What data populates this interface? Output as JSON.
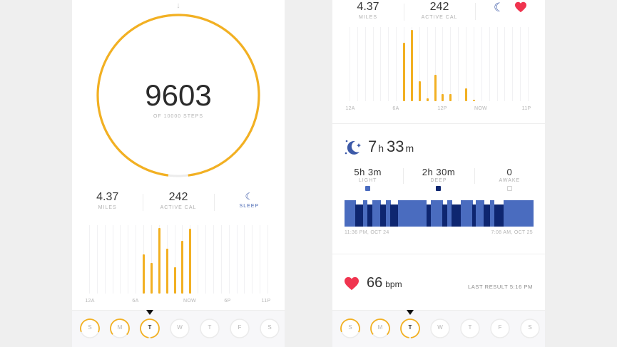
{
  "colors": {
    "accent_orange": "#f2b022",
    "sleep_light": "#4a6cbf",
    "sleep_deep": "#0e2670",
    "heart": "#f0344f",
    "moon": "#3d5aa8",
    "ring_track": "#ececec"
  },
  "left": {
    "steps": {
      "value": "9603",
      "subtitle": "OF 10000 STEPS",
      "goal": 10000,
      "progress_pct": 96.03
    },
    "stats": [
      {
        "value": "4.37",
        "label": "MILES"
      },
      {
        "value": "242",
        "label": "ACTIVE CAL"
      },
      {
        "icon": "moon-icon",
        "label": "SLEEP"
      }
    ],
    "chart": {
      "x_labels": [
        "12A",
        "6A",
        "NOW",
        "6P",
        "11P"
      ],
      "bars": [
        0,
        0,
        0,
        0,
        0,
        0,
        0,
        0.6,
        0.47,
        1.0,
        0.68,
        0.4,
        0.8,
        0.99,
        0,
        0,
        0,
        0,
        0,
        0,
        0,
        0,
        0,
        0
      ]
    },
    "days": [
      {
        "label": "S",
        "progress": 0.62,
        "active": false
      },
      {
        "label": "M",
        "progress": 0.72,
        "active": false
      },
      {
        "label": "T",
        "progress": 0.96,
        "active": true
      },
      {
        "label": "W",
        "progress": 0,
        "active": false
      },
      {
        "label": "T",
        "progress": 0,
        "active": false
      },
      {
        "label": "F",
        "progress": 0,
        "active": false
      },
      {
        "label": "S",
        "progress": 0,
        "active": false
      }
    ]
  },
  "right": {
    "stats": [
      {
        "value": "4.37",
        "label": "MILES"
      },
      {
        "value": "242",
        "label": "ACTIVE CAL"
      }
    ],
    "icons": [
      "moon-icon",
      "heart-icon"
    ],
    "chart": {
      "x_labels": [
        "12A",
        "6A",
        "12P",
        "NOW",
        "11P"
      ],
      "bars": [
        0,
        0,
        0,
        0,
        0,
        0,
        0,
        0.82,
        1.0,
        0.28,
        0.04,
        0.37,
        0.1,
        0.1,
        0,
        0.18,
        0.02,
        0,
        0,
        0,
        0,
        0,
        0,
        0
      ]
    },
    "sleep": {
      "total_hours": "7",
      "hours_unit": "h",
      "total_minutes": "33",
      "minutes_unit": "m",
      "stats": [
        {
          "value": "5h 3m",
          "label": "LIGHT",
          "swatch": "#4a6cbf"
        },
        {
          "value": "2h 30m",
          "label": "DEEP",
          "swatch": "#0e2670"
        },
        {
          "value": "0",
          "label": "AWAKE",
          "swatch": "#ffffff"
        }
      ],
      "start_time": "11:36 PM, OCT 24",
      "end_time": "7:08 AM, OCT 25",
      "segments": [
        {
          "t": "L",
          "w": 15
        },
        {
          "t": "D",
          "w": 10
        },
        {
          "t": "L",
          "w": 6
        },
        {
          "t": "D",
          "w": 7
        },
        {
          "t": "L",
          "w": 11
        },
        {
          "t": "D",
          "w": 8
        },
        {
          "t": "L",
          "w": 6
        },
        {
          "t": "D",
          "w": 10
        },
        {
          "t": "L",
          "w": 39
        },
        {
          "t": "D",
          "w": 6
        },
        {
          "t": "L",
          "w": 16
        },
        {
          "t": "D",
          "w": 7
        },
        {
          "t": "L",
          "w": 6
        },
        {
          "t": "D",
          "w": 12
        },
        {
          "t": "L",
          "w": 16
        },
        {
          "t": "D",
          "w": 5
        },
        {
          "t": "L",
          "w": 11
        },
        {
          "t": "D",
          "w": 8
        },
        {
          "t": "L",
          "w": 6
        },
        {
          "t": "D",
          "w": 13
        },
        {
          "t": "L",
          "w": 41
        }
      ]
    },
    "heart_rate": {
      "value": "66",
      "unit": "bpm",
      "last_result": "LAST RESULT 5:16 PM"
    },
    "days": [
      {
        "label": "S",
        "progress": 0.62,
        "active": false
      },
      {
        "label": "M",
        "progress": 0.72,
        "active": false
      },
      {
        "label": "T",
        "progress": 0.96,
        "active": true
      },
      {
        "label": "W",
        "progress": 0,
        "active": false
      },
      {
        "label": "T",
        "progress": 0,
        "active": false
      },
      {
        "label": "F",
        "progress": 0,
        "active": false
      },
      {
        "label": "S",
        "progress": 0,
        "active": false
      }
    ]
  }
}
